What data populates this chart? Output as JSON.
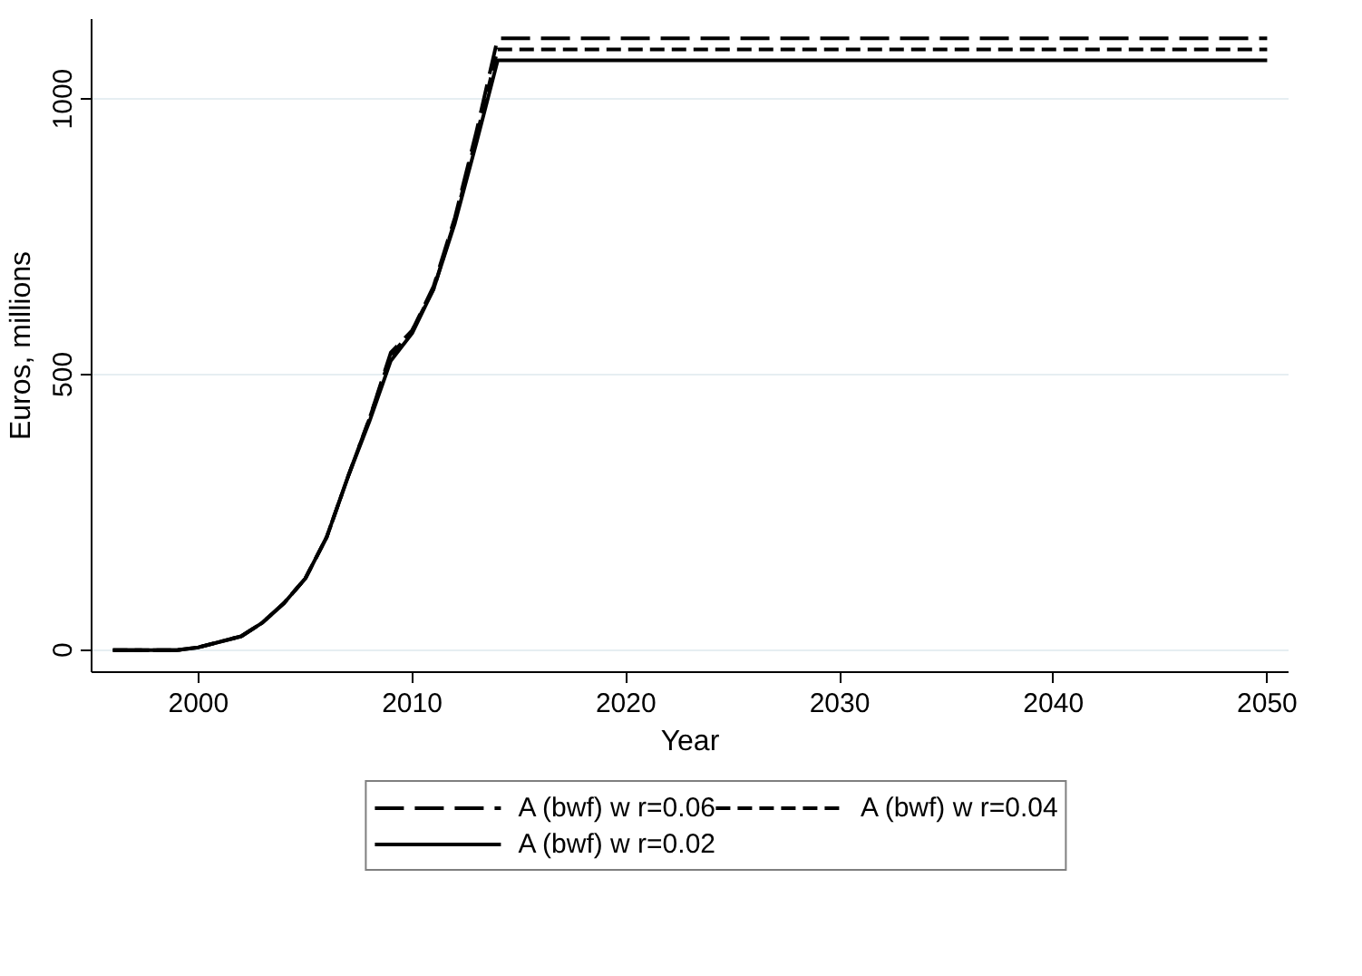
{
  "chart_data": {
    "type": "line",
    "xlabel": "Year",
    "ylabel": "Euros, millions",
    "x": [
      1996,
      1997,
      1998,
      1999,
      2000,
      2001,
      2002,
      2003,
      2004,
      2005,
      2006,
      2007,
      2008,
      2009,
      2010,
      2011,
      2012,
      2013,
      2014,
      2050
    ],
    "series": [
      {
        "name": "A (bwf) w r=0.06",
        "color": "#000000",
        "line_style": "longdash",
        "values": [
          0,
          0,
          0,
          0,
          5,
          15,
          25,
          50,
          85,
          130,
          205,
          315,
          420,
          540,
          580,
          660,
          785,
          940,
          1110,
          1110
        ]
      },
      {
        "name": "A (bwf) w r=0.04",
        "color": "#000000",
        "line_style": "dashed",
        "values": [
          0,
          0,
          0,
          0,
          5,
          15,
          25,
          50,
          85,
          130,
          205,
          315,
          420,
          535,
          580,
          655,
          780,
          930,
          1090,
          1090
        ]
      },
      {
        "name": "A (bwf) w r=0.02",
        "color": "#000000",
        "line_style": "solid",
        "values": [
          0,
          0,
          0,
          0,
          5,
          15,
          25,
          50,
          85,
          130,
          205,
          315,
          415,
          525,
          575,
          655,
          775,
          920,
          1070,
          1070
        ]
      }
    ],
    "xlim": [
      1995,
      2051
    ],
    "ylim": [
      -40,
      1145
    ],
    "xticks": [
      2000,
      2010,
      2020,
      2030,
      2040,
      2050
    ],
    "yticks": [
      0,
      500,
      1000
    ],
    "grid": "y",
    "legend": "bottom"
  }
}
